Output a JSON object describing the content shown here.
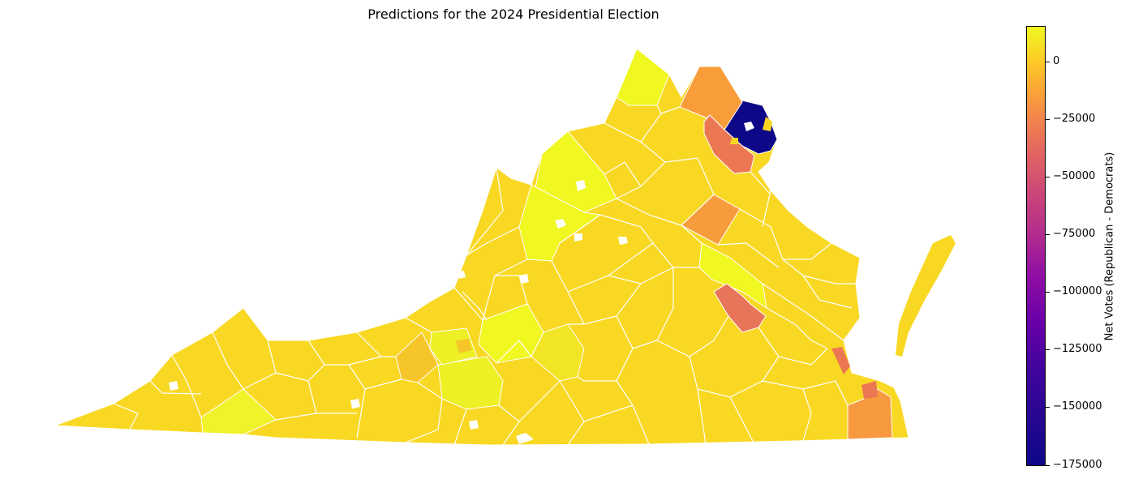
{
  "title": "Predictions for the 2024 Presidential Election",
  "colorbar": {
    "label": "Net Votes (Republican - Democrats)",
    "ticks": [
      "0",
      "−25000",
      "−50000",
      "−75000",
      "−100000",
      "−125000",
      "−150000",
      "−175000"
    ],
    "tick_values": [
      0,
      -25000,
      -50000,
      -75000,
      -100000,
      -125000,
      -150000,
      -175000
    ],
    "range": [
      -176000,
      15000
    ],
    "colormap": "plasma"
  },
  "colors": {
    "county_default": "#f8d823",
    "county_border": "#ffffff",
    "fairfax": "#0d0887",
    "loudoun": "#f99d3b",
    "prince_william": "#ec7853",
    "henrico": "#e8745a",
    "virginia_beach": "#f79a3f"
  }
}
